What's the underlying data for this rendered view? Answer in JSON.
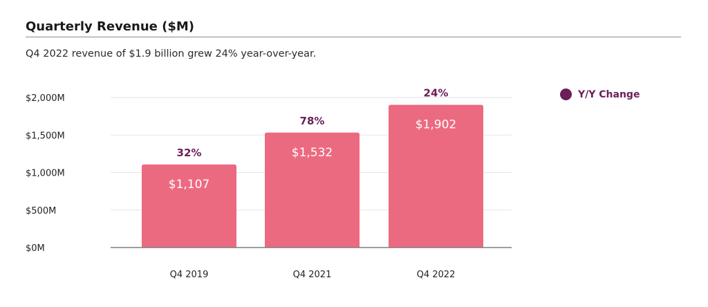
{
  "title": "Quarterly Revenue ($M)",
  "subtitle": "Q4 2022 revenue of $1.9 billion grew 24% year-over-year.",
  "legend": {
    "label": "Y/Y Change"
  },
  "colors": {
    "bar": "#ec6a80",
    "change_text": "#6b1e58",
    "grid": "#e3e3e3",
    "axis": "#7f7f7f",
    "bar_label": "#ffffff"
  },
  "chart_data": {
    "type": "bar",
    "categories": [
      "Q4 2019",
      "Q4 2021",
      "Q4 2022"
    ],
    "values": [
      1107,
      1532,
      1902
    ],
    "value_labels": [
      "$1,107",
      "$1,532",
      "$1,902"
    ],
    "change_labels": [
      "32%",
      "78%",
      "24%"
    ],
    "title": "Quarterly Revenue ($M)",
    "xlabel": "",
    "ylabel": "",
    "ylim": [
      0,
      2000
    ],
    "yticks": [
      0,
      500,
      1000,
      1500,
      2000
    ],
    "ytick_labels": [
      "$0M",
      "$500M",
      "$1,000M",
      "$1,500M",
      "$2,000M"
    ],
    "grid": true,
    "legend": "top-right"
  }
}
